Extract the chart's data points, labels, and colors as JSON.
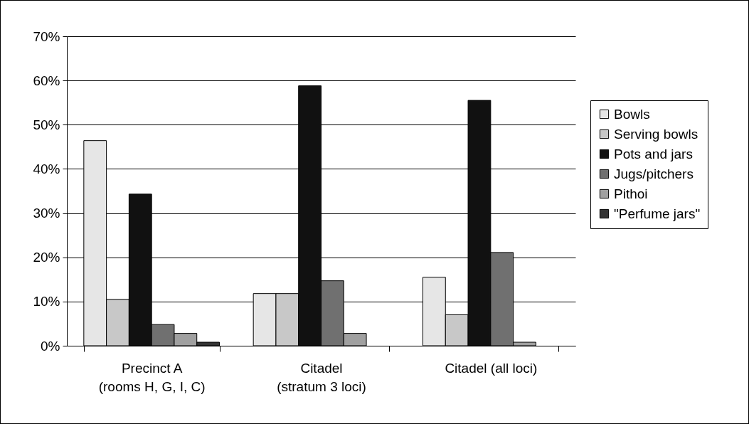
{
  "chart_data": {
    "type": "bar",
    "categories": [
      "Precinct A\n(rooms H, G, I, C)",
      "Citadel\n(stratum 3 loci)",
      "Citadel (all loci)"
    ],
    "series": [
      {
        "name": "Bowls",
        "color": "#e6e6e6",
        "values": [
          46.4,
          11.8,
          15.5
        ]
      },
      {
        "name": "Serving bowls",
        "color": "#c8c8c8",
        "values": [
          10.5,
          11.8,
          7.0
        ]
      },
      {
        "name": "Pots and jars",
        "color": "#111111",
        "values": [
          34.3,
          58.8,
          55.5
        ]
      },
      {
        "name": "Jugs/pitchers",
        "color": "#707070",
        "values": [
          4.8,
          14.7,
          21.1
        ]
      },
      {
        "name": "Pithoi",
        "color": "#a0a0a0",
        "values": [
          2.8,
          2.8,
          0.8
        ]
      },
      {
        "name": "\"Perfume jars\"",
        "color": "#333333",
        "values": [
          0.8,
          0,
          0
        ]
      }
    ],
    "ylim": [
      0,
      70
    ],
    "yticks": [
      {
        "value": 0,
        "label": "0%"
      },
      {
        "value": 10,
        "label": "10%"
      },
      {
        "value": 20,
        "label": "20%"
      },
      {
        "value": 30,
        "label": "30%"
      },
      {
        "value": 40,
        "label": "40%"
      },
      {
        "value": 50,
        "label": "50%"
      },
      {
        "value": 60,
        "label": "60%"
      },
      {
        "value": 70,
        "label": "70%"
      }
    ],
    "grid": "y",
    "legend": "right"
  }
}
